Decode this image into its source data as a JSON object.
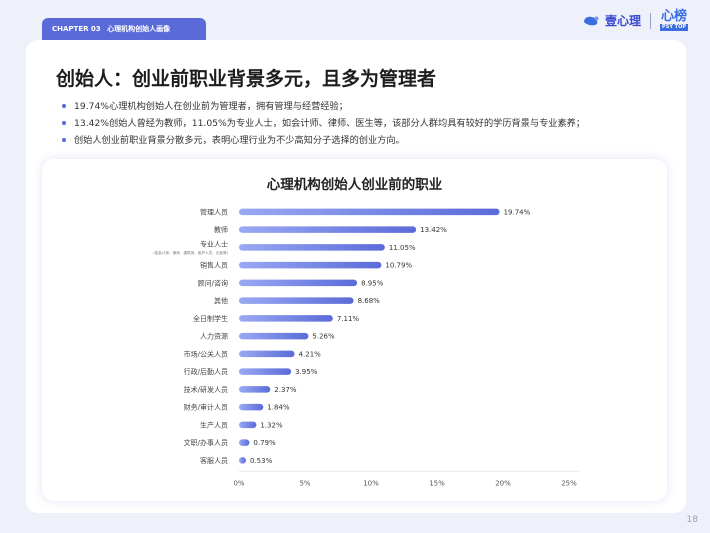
{
  "header": {
    "chapter": "CHAPTER 03",
    "chapter_title": "心理机构创始人画像",
    "brand_name": "壹心理",
    "brand_mark": "心榜",
    "brand_mark_en": "PSY TOP"
  },
  "title": "创始人：创业前职业背景多元，且多为管理者",
  "bullets": [
    "19.74%心理机构创始人在创业前为管理者，拥有管理与经营经验；",
    "13.42%创始人曾经为教师，11.05%为专业人士，如会计师、律师、医生等，该部分人群均具有较好的学历背景与专业素养；",
    "创始人创业前职业背景分散多元，表明心理行业为不少高知分子选择的创业方向。"
  ],
  "page_number": "18",
  "colors": {
    "accent": "#5a6bd9",
    "bar_start": "#9aa9f3",
    "bar_end": "#5a6bd9"
  },
  "chart_data": {
    "type": "bar",
    "orientation": "horizontal",
    "title": "心理机构创始人创业前的职业",
    "categories": [
      "管理人员",
      "教师",
      "专业人士",
      "销售人员",
      "顾问/咨询",
      "其他",
      "全日制学生",
      "人力资源",
      "市场/公关人员",
      "行政/后勤人员",
      "技术/研发人员",
      "财务/审计人员",
      "生产人员",
      "文职/办事人员",
      "客服人员"
    ],
    "category_notes": [
      "",
      "",
      "(如会计师、律师、建筑师、医护人员、记者等)",
      "",
      "",
      "",
      "",
      "",
      "",
      "",
      "",
      "",
      "",
      "",
      ""
    ],
    "values": [
      19.74,
      13.42,
      11.05,
      10.79,
      8.95,
      8.68,
      7.11,
      5.26,
      4.21,
      3.95,
      2.37,
      1.84,
      1.32,
      0.79,
      0.53
    ],
    "value_labels": [
      "19.74%",
      "13.42%",
      "11.05%",
      "10.79%",
      "8.95%",
      "8.68%",
      "7.11%",
      "5.26%",
      "4.21%",
      "3.95%",
      "2.37%",
      "1.84%",
      "1.32%",
      "0.79%",
      "0.53%"
    ],
    "xlim": [
      0,
      25
    ],
    "xticks": [
      "0%",
      "5%",
      "10%",
      "15%",
      "20%",
      "25%"
    ],
    "grid": false
  }
}
